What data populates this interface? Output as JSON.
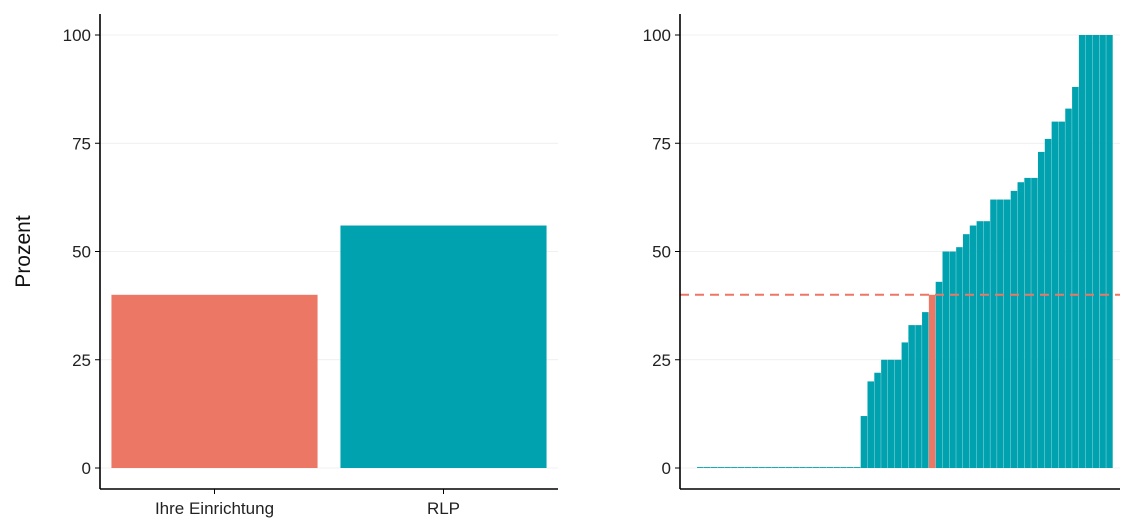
{
  "colors": {
    "own": "#ED7765",
    "other": "#00A2B0",
    "axis": "#000000",
    "grid": "#EBEBEB",
    "text": "#222222",
    "reference_line": "#ED7765"
  },
  "chart_data": [
    {
      "type": "bar",
      "categories": [
        "Ihre Einrichtung",
        "RLP"
      ],
      "values": [
        40,
        56
      ],
      "bar_colors": [
        "own",
        "other"
      ],
      "ylabel": "Prozent",
      "ylim": [
        0,
        100
      ],
      "yticks": [
        0,
        25,
        50,
        75,
        100
      ],
      "ytick_labels": [
        "0",
        "25",
        "50",
        "75",
        "100"
      ],
      "grid": "horizontal major, light"
    },
    {
      "type": "bar",
      "description_hidden": true,
      "values": [
        0,
        0,
        0,
        0,
        0,
        0,
        0,
        0,
        0,
        0,
        0,
        0,
        0,
        0,
        0,
        0,
        0,
        0,
        0,
        0,
        0,
        0,
        0,
        0,
        12,
        20,
        22,
        25,
        25,
        25,
        29,
        33,
        33,
        36,
        40,
        43,
        50,
        50,
        51,
        54,
        56,
        57,
        57,
        62,
        62,
        62,
        64,
        66,
        67,
        67,
        73,
        76,
        80,
        80,
        83,
        88,
        100,
        100,
        100,
        100,
        100
      ],
      "highlight_index": 34,
      "reference_value": 40,
      "reference_line": "dashed horizontal",
      "ylim": [
        0,
        100
      ],
      "yticks": [
        0,
        25,
        50,
        75,
        100
      ],
      "ytick_labels": [
        "0",
        "25",
        "50",
        "75",
        "100"
      ],
      "grid": "horizontal major, light"
    }
  ]
}
